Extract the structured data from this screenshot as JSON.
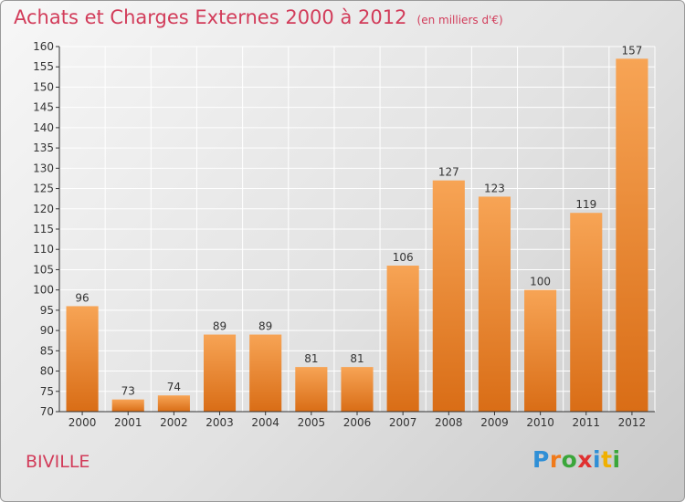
{
  "page": {
    "title": "Achats et Charges Externes 2000 à 2012",
    "unit": "(en milliers d'€)",
    "commune": "BIVILLE",
    "logo": {
      "text": "Proxiti",
      "letters": [
        {
          "ch": "P",
          "color": "#2f8fd6"
        },
        {
          "ch": "r",
          "color": "#f07a1a"
        },
        {
          "ch": "o",
          "color": "#3aa63a"
        },
        {
          "ch": "x",
          "color": "#e03030"
        },
        {
          "ch": "i",
          "color": "#2f8fd6"
        },
        {
          "ch": "t",
          "color": "#f0b000"
        },
        {
          "ch": "i",
          "color": "#3aa63a"
        }
      ]
    }
  },
  "chart_data": {
    "type": "bar",
    "title": "Achats et Charges Externes 2000 à 2012",
    "subtitle": "(en milliers d'€)",
    "categories": [
      "2000",
      "2001",
      "2002",
      "2003",
      "2004",
      "2005",
      "2006",
      "2007",
      "2008",
      "2009",
      "2010",
      "2011",
      "2012"
    ],
    "values": [
      96,
      73,
      74,
      89,
      89,
      81,
      81,
      106,
      127,
      123,
      100,
      119,
      157
    ],
    "ylim": [
      70,
      160
    ],
    "yticks": [
      70,
      75,
      80,
      85,
      90,
      95,
      100,
      105,
      110,
      115,
      120,
      125,
      130,
      135,
      140,
      145,
      150,
      155,
      160
    ],
    "grid": true,
    "colors": {
      "bar_top": "#f7a455",
      "bar_bottom": "#d96d16",
      "text": "#d23c5a",
      "axis": "#333333"
    }
  }
}
